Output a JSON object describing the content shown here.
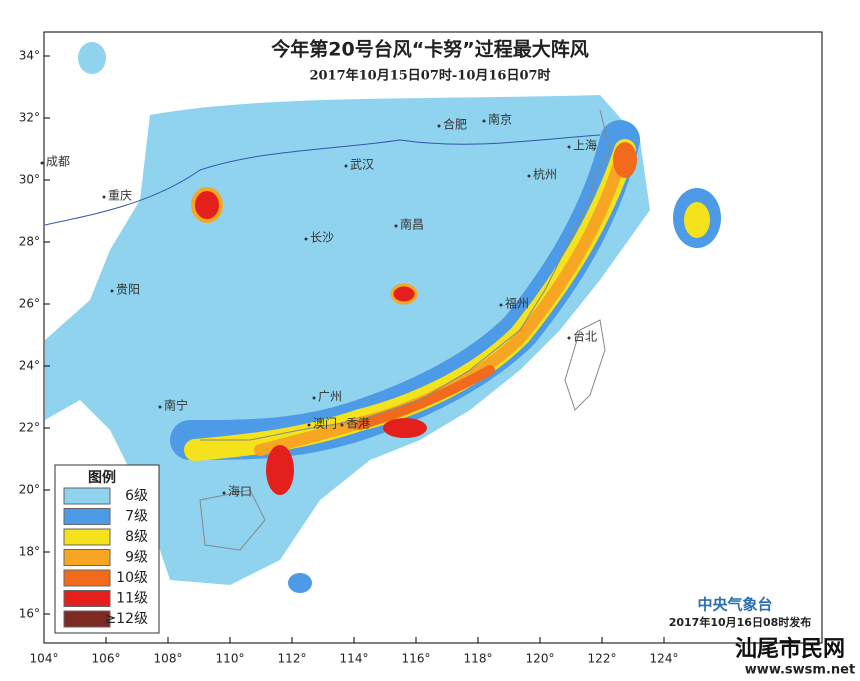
{
  "header": {
    "title": "今年第20号台风“卡努”过程最大阵风",
    "subtitle": "2017年10月15日07时-10月16日07时"
  },
  "axes": {
    "lon_ticks": [
      {
        "value": 104,
        "label": "104°"
      },
      {
        "value": 106,
        "label": "106°"
      },
      {
        "value": 108,
        "label": "108°"
      },
      {
        "value": 110,
        "label": "110°"
      },
      {
        "value": 112,
        "label": "112°"
      },
      {
        "value": 114,
        "label": "114°"
      },
      {
        "value": 116,
        "label": "116°"
      },
      {
        "value": 118,
        "label": "118°"
      },
      {
        "value": 120,
        "label": "120°"
      },
      {
        "value": 122,
        "label": "122°"
      },
      {
        "value": 124,
        "label": "124°"
      }
    ],
    "lat_ticks": [
      {
        "value": 34,
        "label": "34°"
      },
      {
        "value": 32,
        "label": "32°"
      },
      {
        "value": 30,
        "label": "30°"
      },
      {
        "value": 28,
        "label": "28°"
      },
      {
        "value": 26,
        "label": "26°"
      },
      {
        "value": 24,
        "label": "24°"
      },
      {
        "value": 22,
        "label": "22°"
      },
      {
        "value": 20,
        "label": "20°"
      },
      {
        "value": 18,
        "label": "18°"
      },
      {
        "value": 16,
        "label": "16°"
      }
    ]
  },
  "cities": [
    "成都",
    "重庆",
    "贵阳",
    "长沙",
    "武汉",
    "合肥",
    "南京",
    "上海",
    "杭州",
    "南昌",
    "福州",
    "台北",
    "南宁",
    "广州",
    "澳门",
    "香港",
    "海口"
  ],
  "legend": {
    "title": "图例",
    "items": [
      {
        "label": "6级",
        "color": "#8fd3ee"
      },
      {
        "label": "7级",
        "color": "#4d9be6"
      },
      {
        "label": "8级",
        "color": "#f4e21c"
      },
      {
        "label": "9级",
        "color": "#f6a623"
      },
      {
        "label": "10级",
        "color": "#f26a1b"
      },
      {
        "label": "11级",
        "color": "#e3201b"
      },
      {
        "label": "≥12级",
        "color": "#7d2a22"
      }
    ]
  },
  "footer": {
    "publisher": "中央气象台",
    "issued": "2017年10月16日08时发布",
    "watermark": "汕尾市民网",
    "site": "www.swsm.net"
  }
}
